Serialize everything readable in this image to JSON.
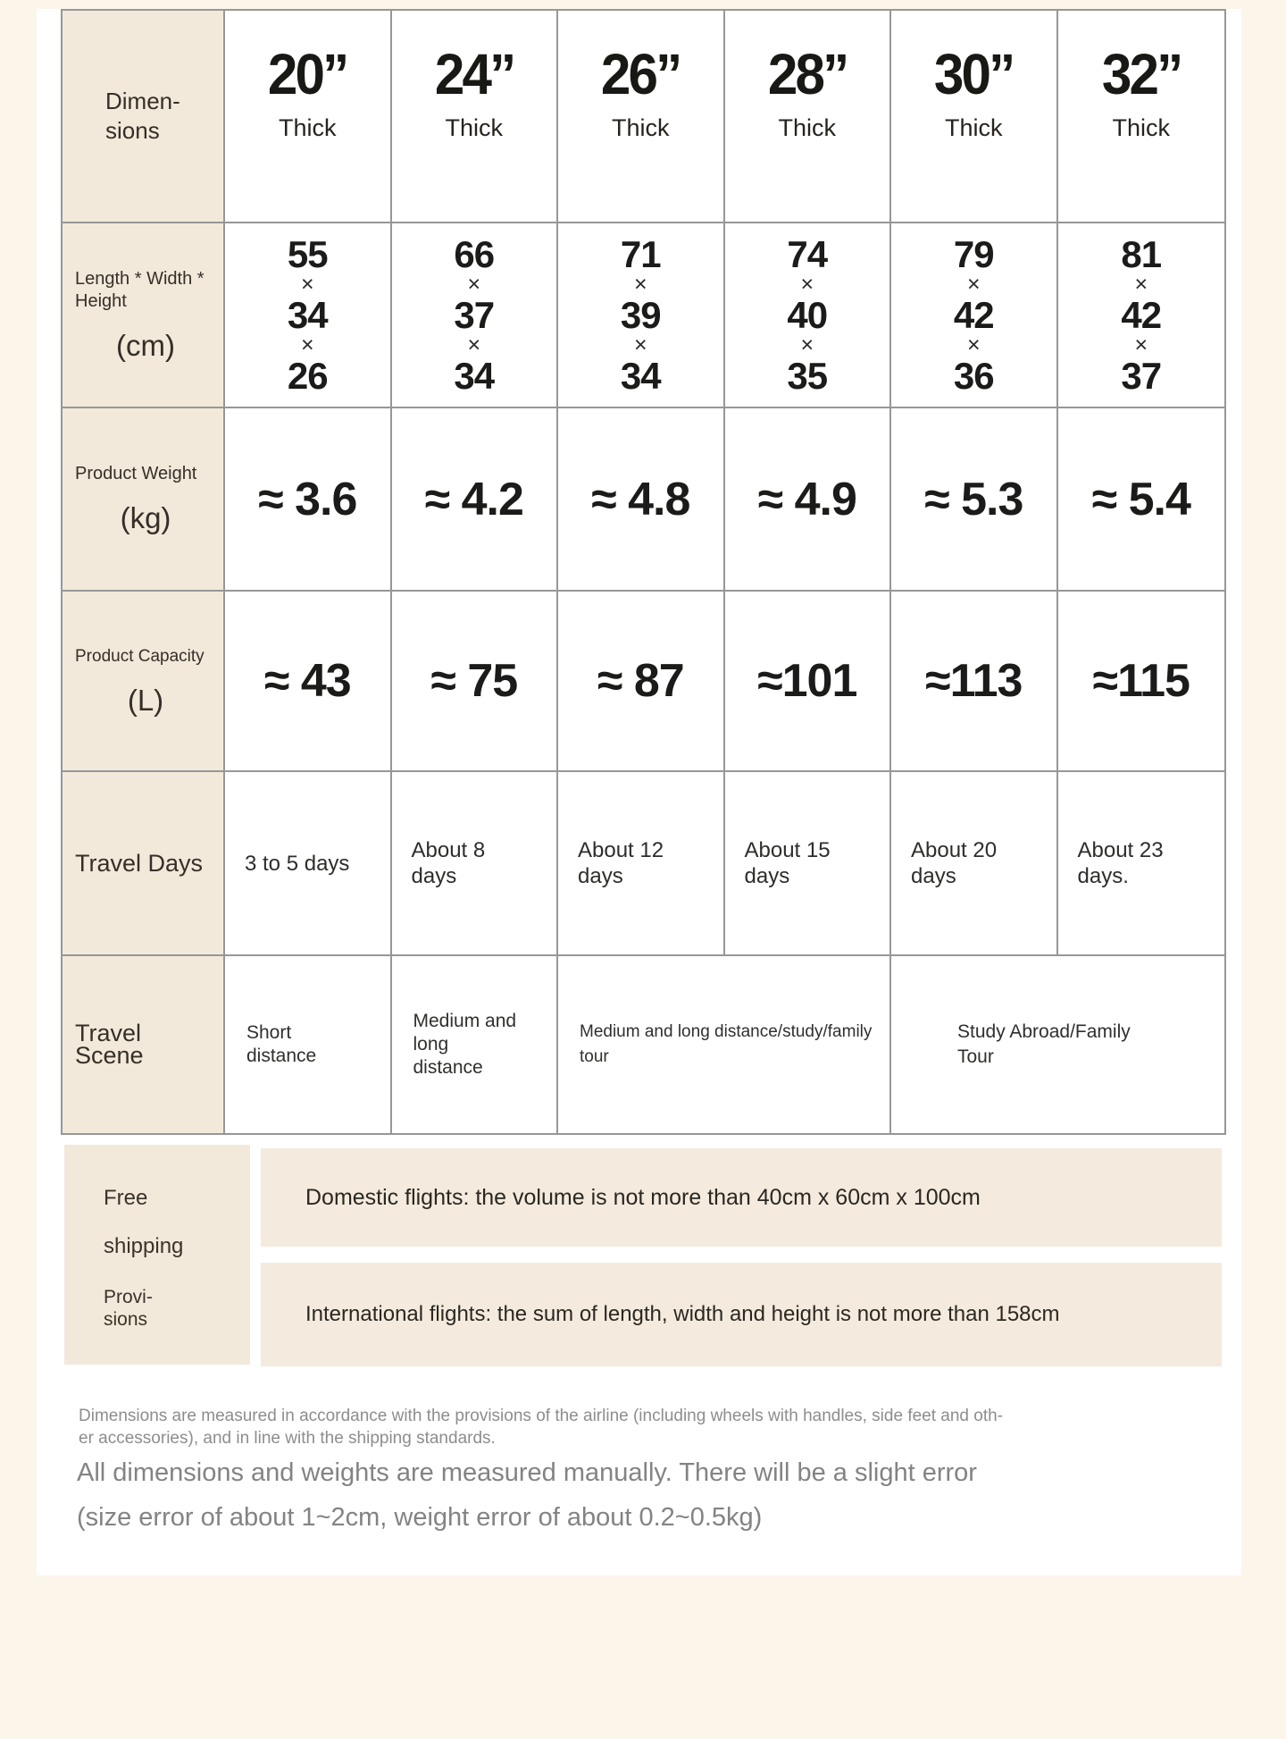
{
  "colors": {
    "page_background": "#fcf5ea",
    "label_cell": "#f2e9da",
    "note_bar": "#f4ebde",
    "table_border": "#979797"
  },
  "symbols": {
    "times": "×"
  },
  "spec_table": {
    "corner_label": "Dimen-sions",
    "columns": [
      {
        "size": "20”",
        "thick": "Thick"
      },
      {
        "size": "24”",
        "thick": "Thick"
      },
      {
        "size": "26”",
        "thick": "Thick"
      },
      {
        "size": "28”",
        "thick": "Thick"
      },
      {
        "size": "30”",
        "thick": "Thick"
      },
      {
        "size": "32”",
        "thick": "Thick"
      }
    ],
    "dimensions": {
      "label": "Length * Width * Height",
      "unit": "(cm)",
      "values": [
        {
          "l": "55",
          "w": "34",
          "h": "26"
        },
        {
          "l": "66",
          "w": "37",
          "h": "34"
        },
        {
          "l": "71",
          "w": "39",
          "h": "34"
        },
        {
          "l": "74",
          "w": "40",
          "h": "35"
        },
        {
          "l": "79",
          "w": "42",
          "h": "36"
        },
        {
          "l": "81",
          "w": "42",
          "h": "37"
        }
      ]
    },
    "weight": {
      "label": "Product Weight",
      "unit": "(kg)",
      "values": [
        "≈ 3.6",
        "≈ 4.2",
        "≈ 4.8",
        "≈ 4.9",
        "≈ 5.3",
        "≈ 5.4"
      ]
    },
    "capacity": {
      "label": "Product Capacity",
      "unit": "(L)",
      "values": [
        "≈ 43",
        "≈ 75",
        "≈ 87",
        "≈101",
        "≈113",
        "≈115"
      ]
    },
    "travel_days": {
      "label": "Travel Days",
      "values": [
        "3 to 5 days",
        "About 8 days",
        "About 12 days",
        "About 15 days",
        "About 20 days",
        "About 23 days."
      ]
    },
    "travel_scene": {
      "label": "Travel Scene",
      "values": [
        "Short distance",
        "Medium and long distance",
        "Medium and long distance/study/family tour",
        "Study Abroad/Family Tour"
      ]
    }
  },
  "shipping": {
    "title_lines": [
      "Free",
      "shipping",
      "Provi-sions"
    ],
    "notes": [
      "Domestic flights: the volume is not more than 40cm x 60cm x 100cm",
      "International flights: the sum of length, width and height is not more than 158cm"
    ]
  },
  "footnotes": {
    "small_lines": [
      "Dimensions are measured in accordance with the provisions of the airline (including wheels with handles, side feet and oth-",
      "er accessories), and in line with the shipping standards."
    ],
    "large_lines": [
      "All dimensions and weights are measured manually. There will be a slight error",
      "(size error of about 1~2cm, weight error of about 0.2~0.5kg)"
    ]
  }
}
